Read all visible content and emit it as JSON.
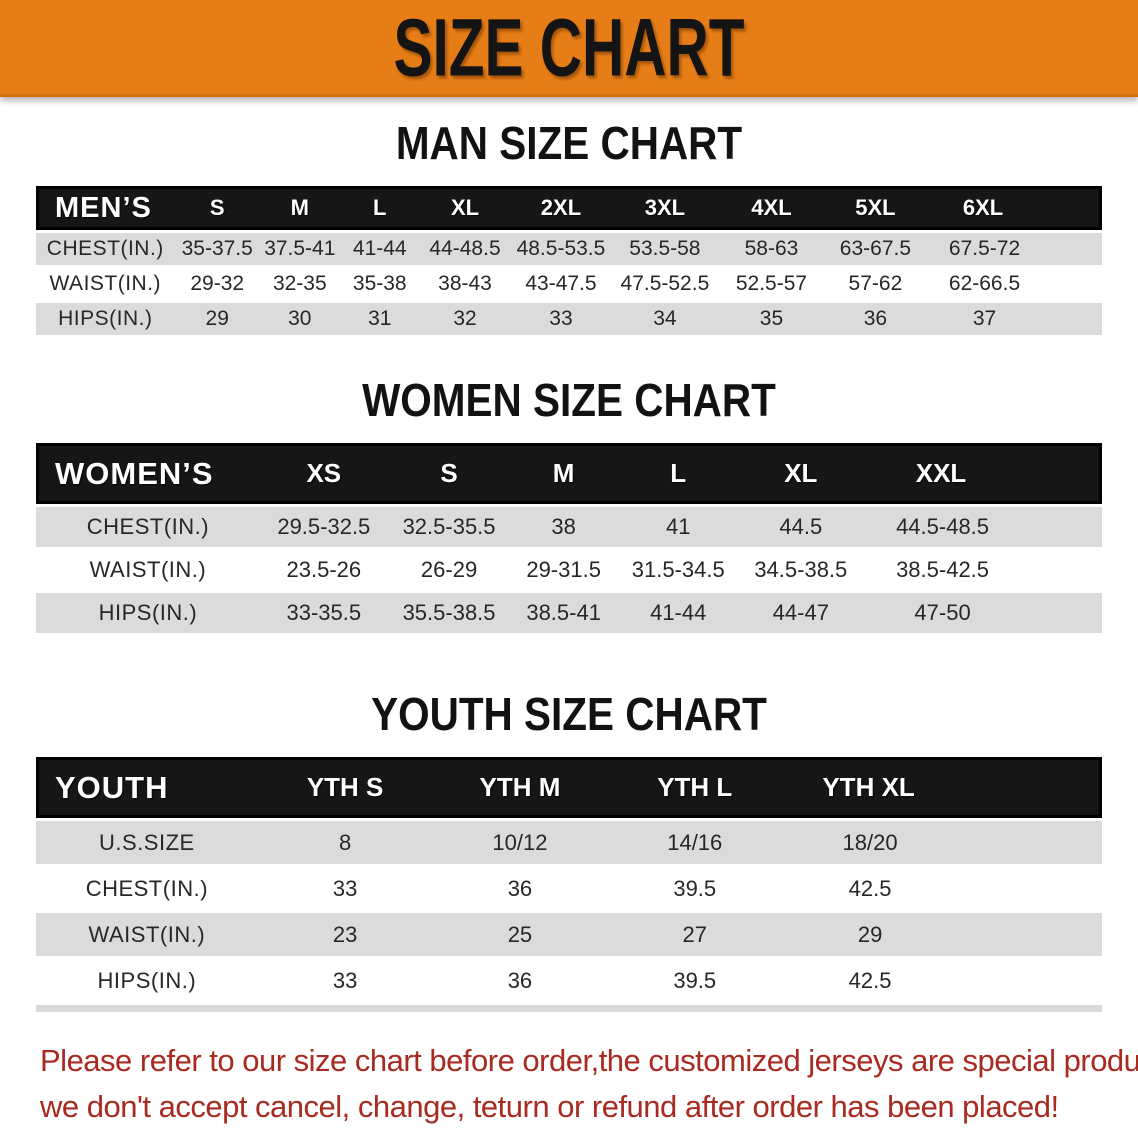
{
  "banner": {
    "title": "SIZE CHART",
    "bg_color": "#E67D16"
  },
  "sections": [
    {
      "heading": "MAN SIZE CHART",
      "group_label": "MEN’S",
      "columns": [
        "S",
        "M",
        "L",
        "XL",
        "2XL",
        "3XL",
        "4XL",
        "5XL",
        "6XL"
      ],
      "rows": [
        {
          "label": "CHEST(IN.)",
          "values": [
            "35-37.5",
            "37.5-41",
            "41-44",
            "44-48.5",
            "48.5-53.5",
            "53.5-58",
            "58-63",
            "63-67.5",
            "67.5-72"
          ]
        },
        {
          "label": "WAIST(IN.)",
          "values": [
            "29-32",
            "32-35",
            "35-38",
            "38-43",
            "43-47.5",
            "47.5-52.5",
            "52.5-57",
            "57-62",
            "62-66.5"
          ]
        },
        {
          "label": "HIPS(IN.)",
          "values": [
            "29",
            "30",
            "31",
            "32",
            "33",
            "34",
            "35",
            "36",
            "37"
          ]
        }
      ]
    },
    {
      "heading": "WOMEN SIZE CHART",
      "group_label": "WOMEN’S",
      "columns": [
        "XS",
        "S",
        "M",
        "L",
        "XL",
        "XXL"
      ],
      "rows": [
        {
          "label": "CHEST(IN.)",
          "values": [
            "29.5-32.5",
            "32.5-35.5",
            "38",
            "41",
            "44.5",
            "44.5-48.5"
          ]
        },
        {
          "label": "WAIST(IN.)",
          "values": [
            "23.5-26",
            "26-29",
            "29-31.5",
            "31.5-34.5",
            "34.5-38.5",
            "38.5-42.5"
          ]
        },
        {
          "label": "HIPS(IN.)",
          "values": [
            "33-35.5",
            "35.5-38.5",
            "38.5-41",
            "41-44",
            "44-47",
            "47-50"
          ]
        }
      ]
    },
    {
      "heading": "YOUTH SIZE CHART",
      "group_label": "YOUTH",
      "columns": [
        "YTH S",
        "YTH M",
        "YTH L",
        "YTH XL"
      ],
      "rows": [
        {
          "label": "U.S.SIZE",
          "values": [
            "8",
            "10/12",
            "14/16",
            "18/20"
          ]
        },
        {
          "label": "CHEST(IN.)",
          "values": [
            "33",
            "36",
            "39.5",
            "42.5"
          ]
        },
        {
          "label": "WAIST(IN.)",
          "values": [
            "23",
            "25",
            "27",
            "29"
          ]
        },
        {
          "label": "HIPS(IN.)",
          "values": [
            "33",
            "36",
            "39.5",
            "42.5"
          ]
        }
      ]
    }
  ],
  "note": {
    "lines": [
      "Please refer to our size chart before order,the customized jerseys are special products,",
      "we don't accept cancel, change, teturn or refund after order has been placed!"
    ],
    "color": "#A82A20"
  }
}
